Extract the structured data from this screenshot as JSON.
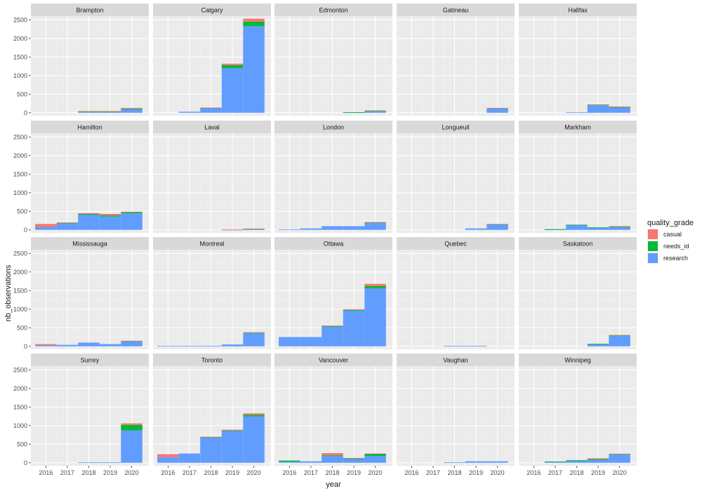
{
  "chart_data": {
    "type": "bar",
    "subtype": "stacked-facet-histogram",
    "xlabel": "year",
    "ylabel": "nb_observations",
    "x_ticks": [
      "2016",
      "2017",
      "2018",
      "2019",
      "2020"
    ],
    "y_ticks": [
      "0",
      "500",
      "1000",
      "1500",
      "2000",
      "2500"
    ],
    "ylim": [
      -80,
      2600
    ],
    "legend": {
      "title": "quality_grade",
      "position": "right",
      "entries": [
        {
          "name": "casual",
          "color": "#F8766D"
        },
        {
          "name": "needs_id",
          "color": "#00BA38"
        },
        {
          "name": "research",
          "color": "#619CFF"
        }
      ]
    },
    "bins": [
      {
        "label": "2016",
        "start": 2015.5,
        "end": 2016.5
      },
      {
        "label": "2017",
        "start": 2016.5,
        "end": 2017.5
      },
      {
        "label": "2018",
        "start": 2017.5,
        "end": 2018.5
      },
      {
        "label": "2019",
        "start": 2018.5,
        "end": 2019.5
      },
      {
        "label": "2020",
        "start": 2019.5,
        "end": 2020.5
      }
    ],
    "facets": [
      {
        "name": "Brampton",
        "research": [
          0,
          0,
          30,
          30,
          100
        ],
        "needs_id": [
          0,
          0,
          5,
          5,
          10
        ],
        "casual": [
          0,
          0,
          10,
          10,
          20
        ]
      },
      {
        "name": "Calgary",
        "research": [
          0,
          30,
          130,
          1200,
          2330
        ],
        "needs_id": [
          0,
          0,
          5,
          80,
          120
        ],
        "casual": [
          0,
          0,
          5,
          40,
          80
        ]
      },
      {
        "name": "Edmonton",
        "research": [
          0,
          0,
          0,
          10,
          40
        ],
        "needs_id": [
          0,
          0,
          0,
          5,
          15
        ],
        "casual": [
          0,
          0,
          0,
          0,
          10
        ]
      },
      {
        "name": "Gatineau",
        "research": [
          0,
          0,
          0,
          0,
          120
        ],
        "needs_id": [
          0,
          0,
          0,
          0,
          5
        ],
        "casual": [
          0,
          0,
          0,
          0,
          5
        ]
      },
      {
        "name": "Halifax",
        "research": [
          0,
          0,
          10,
          200,
          140
        ],
        "needs_id": [
          0,
          0,
          0,
          20,
          10
        ],
        "casual": [
          0,
          0,
          0,
          5,
          20
        ]
      },
      {
        "name": "Hamilton",
        "research": [
          80,
          180,
          410,
          360,
          450
        ],
        "needs_id": [
          0,
          10,
          20,
          30,
          30
        ],
        "casual": [
          80,
          10,
          20,
          40,
          10
        ]
      },
      {
        "name": "Laval",
        "research": [
          0,
          0,
          0,
          5,
          20
        ],
        "needs_id": [
          0,
          0,
          0,
          0,
          5
        ],
        "casual": [
          0,
          0,
          0,
          5,
          10
        ]
      },
      {
        "name": "London",
        "research": [
          10,
          40,
          100,
          100,
          200
        ],
        "needs_id": [
          0,
          0,
          0,
          0,
          5
        ],
        "casual": [
          0,
          0,
          0,
          0,
          5
        ]
      },
      {
        "name": "Longueuil",
        "research": [
          0,
          0,
          0,
          40,
          150
        ],
        "needs_id": [
          0,
          0,
          0,
          0,
          5
        ],
        "casual": [
          0,
          0,
          0,
          0,
          5
        ]
      },
      {
        "name": "Markham",
        "research": [
          0,
          10,
          130,
          60,
          70
        ],
        "needs_id": [
          0,
          10,
          10,
          10,
          25
        ],
        "casual": [
          0,
          0,
          0,
          0,
          5
        ]
      },
      {
        "name": "Mississauga",
        "research": [
          30,
          40,
          100,
          60,
          140
        ],
        "needs_id": [
          0,
          0,
          0,
          0,
          5
        ],
        "casual": [
          30,
          0,
          0,
          0,
          5
        ]
      },
      {
        "name": "Montreal",
        "research": [
          10,
          10,
          10,
          50,
          350
        ],
        "needs_id": [
          0,
          0,
          0,
          0,
          15
        ],
        "casual": [
          0,
          0,
          0,
          0,
          15
        ]
      },
      {
        "name": "Ottawa",
        "research": [
          250,
          250,
          530,
          960,
          1560
        ],
        "needs_id": [
          0,
          0,
          20,
          20,
          60
        ],
        "casual": [
          0,
          0,
          10,
          20,
          60
        ]
      },
      {
        "name": "Quebec",
        "research": [
          0,
          0,
          10,
          10,
          0
        ],
        "needs_id": [
          0,
          0,
          0,
          0,
          0
        ],
        "casual": [
          0,
          0,
          0,
          0,
          0
        ]
      },
      {
        "name": "Saskatoon",
        "research": [
          0,
          0,
          0,
          60,
          280
        ],
        "needs_id": [
          0,
          0,
          0,
          10,
          20
        ],
        "casual": [
          0,
          0,
          0,
          0,
          5
        ]
      },
      {
        "name": "Surrey",
        "research": [
          0,
          0,
          10,
          10,
          870
        ],
        "needs_id": [
          0,
          0,
          0,
          0,
          150
        ],
        "casual": [
          0,
          0,
          0,
          0,
          40
        ]
      },
      {
        "name": "Toronto",
        "research": [
          150,
          250,
          680,
          860,
          1250
        ],
        "needs_id": [
          0,
          0,
          10,
          10,
          40
        ],
        "casual": [
          80,
          0,
          10,
          20,
          40
        ]
      },
      {
        "name": "Vancouver",
        "research": [
          30,
          40,
          180,
          100,
          180
        ],
        "needs_id": [
          30,
          0,
          20,
          20,
          60
        ],
        "casual": [
          0,
          0,
          60,
          10,
          10
        ]
      },
      {
        "name": "Vaughan",
        "research": [
          0,
          0,
          10,
          40,
          40
        ],
        "needs_id": [
          0,
          0,
          0,
          0,
          0
        ],
        "casual": [
          0,
          0,
          0,
          0,
          0
        ]
      },
      {
        "name": "Winnipeg",
        "research": [
          0,
          30,
          50,
          80,
          220
        ],
        "needs_id": [
          0,
          5,
          20,
          20,
          20
        ],
        "casual": [
          0,
          0,
          0,
          20,
          5
        ]
      }
    ]
  }
}
